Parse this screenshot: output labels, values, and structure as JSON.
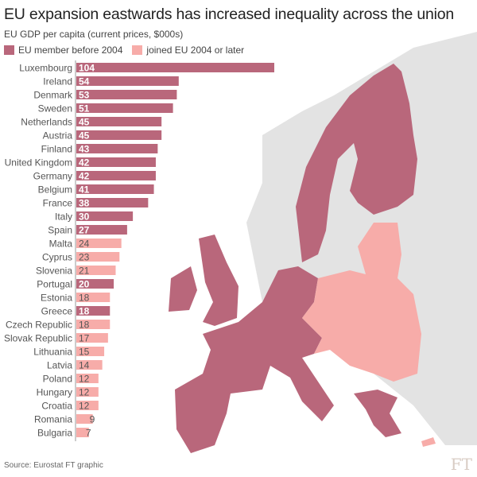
{
  "chart_data": {
    "type": "bar",
    "orientation": "horizontal",
    "title": "EU expansion eastwards has increased inequality across the union",
    "subtitle": "EU GDP per capita (current prices, $000s)",
    "legend": [
      {
        "name": "EU member before 2004",
        "color": "#b9677b"
      },
      {
        "name": "joined EU 2004 or later",
        "color": "#f7aca9"
      }
    ],
    "legend_position": "top-left",
    "grid": false,
    "xlim": [
      0,
      104
    ],
    "categories": [
      "Luxembourg",
      "Ireland",
      "Denmark",
      "Sweden",
      "Netherlands",
      "Austria",
      "Finland",
      "United Kingdom",
      "Germany",
      "Belgium",
      "France",
      "Italy",
      "Spain",
      "Malta",
      "Cyprus",
      "Slovenia",
      "Portugal",
      "Estonia",
      "Greece",
      "Czech Republic",
      "Slovak Republic",
      "Lithuania",
      "Latvia",
      "Poland",
      "Hungary",
      "Croatia",
      "Romania",
      "Bulgaria"
    ],
    "values": [
      104,
      54,
      53,
      51,
      45,
      45,
      43,
      42,
      42,
      41,
      38,
      30,
      27,
      24,
      23,
      21,
      20,
      18,
      18,
      18,
      17,
      15,
      14,
      12,
      12,
      12,
      9,
      7
    ],
    "group": [
      "old",
      "old",
      "old",
      "old",
      "old",
      "old",
      "old",
      "old",
      "old",
      "old",
      "old",
      "old",
      "old",
      "new",
      "new",
      "new",
      "old",
      "new",
      "old",
      "new",
      "new",
      "new",
      "new",
      "new",
      "new",
      "new",
      "new",
      "new"
    ]
  },
  "source": "Source: Eurostat FT graphic",
  "logo": "FT"
}
